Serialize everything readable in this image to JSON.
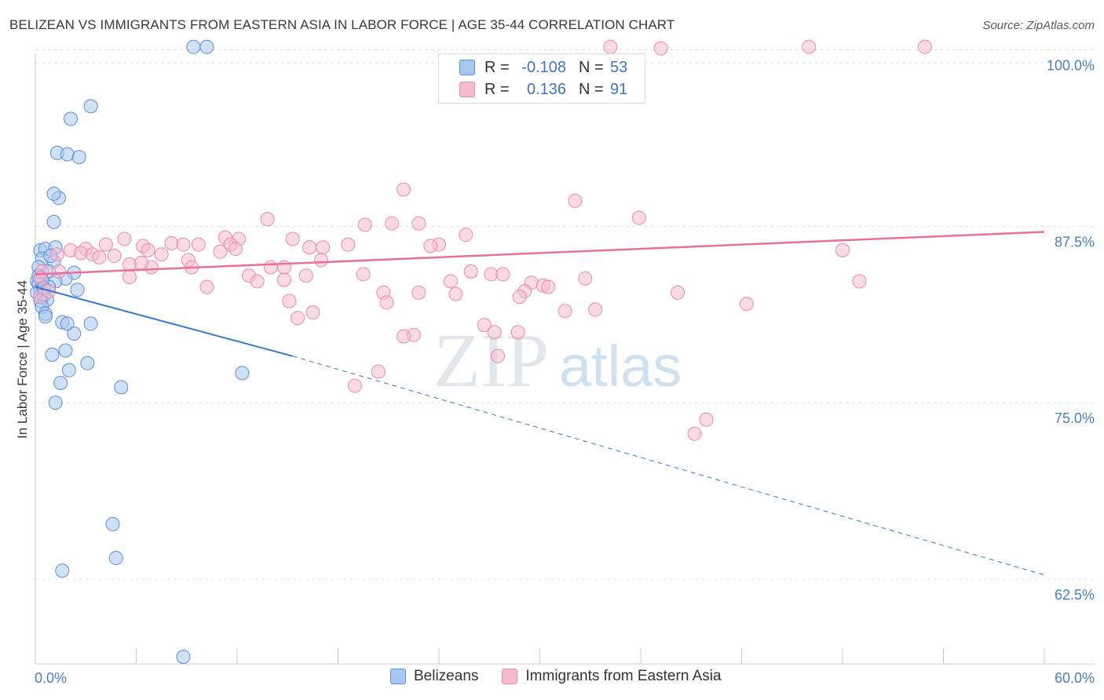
{
  "title": "BELIZEAN VS IMMIGRANTS FROM EASTERN ASIA IN LABOR FORCE | AGE 35-44 CORRELATION CHART",
  "source": "Source: ZipAtlas.com",
  "watermark": {
    "zip": "ZIP",
    "atlas": "atlas"
  },
  "legend": {
    "series1": {
      "r_label": "R =",
      "r_value": "-0.108",
      "n_label": "N =",
      "n_value": "53"
    },
    "series2": {
      "r_label": "R =",
      "r_value": "0.136",
      "n_label": "N =",
      "n_value": "91"
    }
  },
  "bottom_legend": {
    "series1": "Belizeans",
    "series2": "Immigrants from Eastern Asia"
  },
  "colors": {
    "blue_fill": "#a9c8ef",
    "blue_stroke": "#5b8fd6",
    "blue_line": "#3378d4",
    "pink_fill": "#f5bcd0",
    "pink_stroke": "#e88aab",
    "pink_line": "#e8709a",
    "axis_label": "#4a7cc9",
    "grid": "#dde1e6"
  },
  "chart_data": {
    "type": "scatter",
    "title": "BELIZEAN VS IMMIGRANTS FROM EASTERN ASIA IN LABOR FORCE | AGE 35-44 CORRELATION CHART",
    "xlabel": "",
    "ylabel": "In Labor Force | Age 35-44",
    "xlim": [
      0,
      60
    ],
    "ylim": [
      56.5,
      101.3
    ],
    "x_tick_labels": [
      "0.0%",
      "60.0%"
    ],
    "y_ticks": [
      100.0,
      87.5,
      75.0,
      62.5
    ],
    "y_tick_labels": [
      "100.0%",
      "87.5%",
      "75.0%",
      "62.5%"
    ],
    "grid": true,
    "legend_position": "top-center",
    "series": [
      {
        "name": "Belizeans",
        "color": "#a9c8ef",
        "trend": {
          "x": [
            0,
            15.3
          ],
          "y": [
            83.2,
            78.3
          ],
          "dashed_to": [
            60,
            62.8
          ]
        },
        "points": [
          [
            9.4,
            100.2
          ],
          [
            10.2,
            100.2
          ],
          [
            3.3,
            96.0
          ],
          [
            2.1,
            95.1
          ],
          [
            1.3,
            92.7
          ],
          [
            1.9,
            92.6
          ],
          [
            2.6,
            92.4
          ],
          [
            1.4,
            89.5
          ],
          [
            1.1,
            89.8
          ],
          [
            1.1,
            87.8
          ],
          [
            0.3,
            85.8
          ],
          [
            0.6,
            85.9
          ],
          [
            1.2,
            86.0
          ],
          [
            0.4,
            85.2
          ],
          [
            1.1,
            85.0
          ],
          [
            0.2,
            84.6
          ],
          [
            0.8,
            84.3
          ],
          [
            0.3,
            83.9
          ],
          [
            2.3,
            84.2
          ],
          [
            1.8,
            83.8
          ],
          [
            0.1,
            83.6
          ],
          [
            0.4,
            83.7
          ],
          [
            1.2,
            83.6
          ],
          [
            0.2,
            83.4
          ],
          [
            0.3,
            83.0
          ],
          [
            0.8,
            83.2
          ],
          [
            2.5,
            83.0
          ],
          [
            0.1,
            82.8
          ],
          [
            0.5,
            82.6
          ],
          [
            0.7,
            82.3
          ],
          [
            0.3,
            82.2
          ],
          [
            0.4,
            81.8
          ],
          [
            0.6,
            81.3
          ],
          [
            0.6,
            81.1
          ],
          [
            1.6,
            80.7
          ],
          [
            1.9,
            80.6
          ],
          [
            3.3,
            80.6
          ],
          [
            2.3,
            79.9
          ],
          [
            1.8,
            78.7
          ],
          [
            1.0,
            78.4
          ],
          [
            3.1,
            77.8
          ],
          [
            2.0,
            77.3
          ],
          [
            12.3,
            77.1
          ],
          [
            1.5,
            76.4
          ],
          [
            5.1,
            76.1
          ],
          [
            1.2,
            75.0
          ],
          [
            4.6,
            66.4
          ],
          [
            4.8,
            64.0
          ],
          [
            1.6,
            63.1
          ],
          [
            8.8,
            57.0
          ],
          [
            0.2,
            84.0
          ],
          [
            0.5,
            83.1
          ],
          [
            0.9,
            85.4
          ]
        ]
      },
      {
        "name": "Immigrants from Eastern Asia",
        "color": "#f5bcd0",
        "trend": {
          "x": [
            0,
            60
          ],
          "y": [
            84.1,
            87.1
          ]
        },
        "points": [
          [
            34.2,
            100.2
          ],
          [
            46.0,
            100.2
          ],
          [
            52.9,
            100.2
          ],
          [
            37.2,
            100.1
          ],
          [
            21.9,
            90.1
          ],
          [
            32.1,
            89.3
          ],
          [
            35.9,
            88.1
          ],
          [
            13.8,
            88.0
          ],
          [
            19.6,
            87.6
          ],
          [
            21.2,
            87.7
          ],
          [
            22.8,
            87.7
          ],
          [
            25.6,
            86.9
          ],
          [
            15.3,
            86.6
          ],
          [
            11.3,
            86.7
          ],
          [
            12.1,
            86.6
          ],
          [
            5.3,
            86.6
          ],
          [
            8.1,
            86.3
          ],
          [
            8.8,
            86.2
          ],
          [
            9.7,
            86.2
          ],
          [
            11.6,
            86.2
          ],
          [
            16.3,
            86.0
          ],
          [
            18.6,
            86.2
          ],
          [
            17.1,
            86.0
          ],
          [
            24.0,
            86.2
          ],
          [
            23.5,
            86.1
          ],
          [
            6.4,
            86.1
          ],
          [
            4.2,
            86.2
          ],
          [
            6.7,
            85.8
          ],
          [
            3.0,
            85.9
          ],
          [
            2.1,
            85.8
          ],
          [
            2.7,
            85.6
          ],
          [
            11.0,
            85.7
          ],
          [
            11.9,
            85.9
          ],
          [
            7.5,
            85.5
          ],
          [
            3.4,
            85.5
          ],
          [
            3.8,
            85.3
          ],
          [
            4.7,
            85.4
          ],
          [
            9.1,
            85.1
          ],
          [
            5.6,
            84.8
          ],
          [
            6.9,
            84.6
          ],
          [
            9.3,
            84.6
          ],
          [
            14.0,
            84.6
          ],
          [
            14.8,
            84.6
          ],
          [
            17.0,
            85.1
          ],
          [
            1.3,
            85.5
          ],
          [
            1.4,
            84.3
          ],
          [
            0.4,
            84.3
          ],
          [
            0.3,
            83.8
          ],
          [
            5.6,
            83.9
          ],
          [
            12.7,
            84.0
          ],
          [
            13.2,
            83.6
          ],
          [
            14.8,
            83.7
          ],
          [
            16.1,
            84.0
          ],
          [
            19.5,
            84.1
          ],
          [
            24.7,
            83.6
          ],
          [
            25.9,
            84.3
          ],
          [
            27.1,
            84.1
          ],
          [
            27.8,
            84.1
          ],
          [
            29.5,
            83.5
          ],
          [
            30.2,
            83.3
          ],
          [
            32.7,
            83.8
          ],
          [
            29.1,
            82.9
          ],
          [
            28.8,
            82.5
          ],
          [
            30.5,
            83.2
          ],
          [
            22.8,
            82.8
          ],
          [
            20.7,
            82.8
          ],
          [
            25.0,
            82.7
          ],
          [
            38.2,
            82.8
          ],
          [
            42.3,
            82.0
          ],
          [
            49.0,
            83.6
          ],
          [
            10.2,
            83.2
          ],
          [
            0.3,
            82.5
          ],
          [
            15.1,
            82.2
          ],
          [
            16.5,
            81.4
          ],
          [
            33.3,
            81.6
          ],
          [
            31.5,
            81.5
          ],
          [
            15.6,
            81.0
          ],
          [
            20.9,
            82.1
          ],
          [
            26.7,
            80.5
          ],
          [
            28.7,
            80.0
          ],
          [
            27.3,
            80.0
          ],
          [
            22.5,
            79.8
          ],
          [
            21.9,
            79.7
          ],
          [
            27.5,
            78.3
          ],
          [
            20.4,
            77.2
          ],
          [
            19.0,
            76.2
          ],
          [
            0.8,
            82.9
          ],
          [
            39.9,
            73.8
          ],
          [
            39.2,
            72.8
          ],
          [
            48.0,
            85.8
          ],
          [
            6.3,
            84.9
          ]
        ]
      }
    ]
  }
}
